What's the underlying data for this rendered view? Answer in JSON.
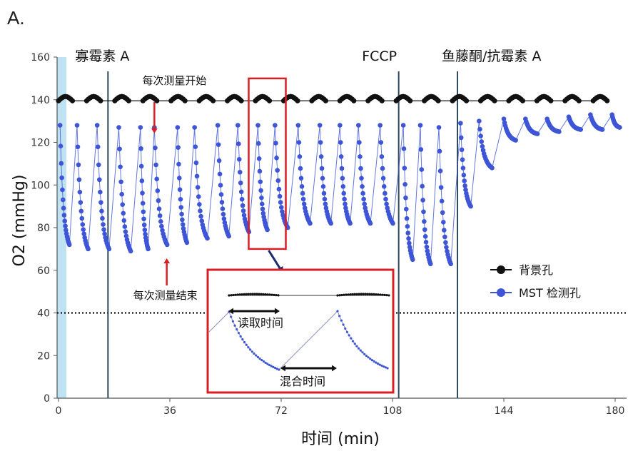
{
  "panel_label": "A.",
  "chart_data": {
    "type": "scatter",
    "xlabel": "时间 (min)",
    "ylabel": "O2 (mmHg)",
    "xlim": [
      0,
      180
    ],
    "ylim": [
      0,
      160
    ],
    "xticks": [
      0,
      36,
      72,
      108,
      144,
      180
    ],
    "yticks": [
      0,
      20,
      40,
      60,
      80,
      100,
      120,
      140,
      160
    ],
    "reference_line_y": 40,
    "colors": {
      "background": "#111111",
      "mst": "#3d55d6",
      "callout": "#d81f26",
      "injection_line": "#2f4a5a",
      "shade": "#bfe2f2"
    },
    "injections": [
      {
        "time": 16,
        "label": "寡霉素 A"
      },
      {
        "time": 110,
        "label": "FCCP"
      },
      {
        "time": 129,
        "label": "鱼藤酮/抗霉素 A"
      }
    ],
    "legend": [
      {
        "name": "背景孔",
        "color": "#111111"
      },
      {
        "name": "MST 检测孔",
        "color": "#3d55d6"
      }
    ],
    "annotations": {
      "start": "每次测量开始",
      "end": "每次测量结束",
      "read_time": "读取时间",
      "mix_time": "混合时间"
    },
    "series": [
      {
        "name": "背景孔",
        "cycle_starts": [
          0,
          9.1,
          18.2,
          27.3,
          36.4,
          45.5,
          54.6,
          63.7,
          72.8,
          81.9,
          91,
          100.1,
          109.2,
          118.3,
          127.4,
          136.5,
          145.6,
          154.7,
          163.8,
          172.9
        ],
        "read_duration": 4.5,
        "y_range": [
          139.5,
          141.5
        ]
      },
      {
        "name": "MST 检测孔",
        "peaks": [
          {
            "t": 0.5,
            "top": 128,
            "bottom": 72
          },
          {
            "t": 6,
            "top": 128,
            "bottom": 70
          },
          {
            "t": 12.5,
            "top": 128,
            "bottom": 70
          },
          {
            "t": 19.5,
            "top": 127,
            "bottom": 69
          },
          {
            "t": 26.5,
            "top": 127,
            "bottom": 70
          },
          {
            "t": 31,
            "top": 127,
            "bottom": 72
          },
          {
            "t": 38.5,
            "top": 127,
            "bottom": 73
          },
          {
            "t": 44,
            "top": 127,
            "bottom": 75
          },
          {
            "t": 51.5,
            "top": 128,
            "bottom": 76
          },
          {
            "t": 58,
            "top": 128,
            "bottom": 78
          },
          {
            "t": 64.5,
            "top": 128,
            "bottom": 79
          },
          {
            "t": 70,
            "top": 128,
            "bottom": 80
          },
          {
            "t": 77.5,
            "top": 128,
            "bottom": 82
          },
          {
            "t": 84.5,
            "top": 128,
            "bottom": 82
          },
          {
            "t": 91,
            "top": 128,
            "bottom": 82
          },
          {
            "t": 97,
            "top": 128,
            "bottom": 82
          },
          {
            "t": 104,
            "top": 128,
            "bottom": 82
          },
          {
            "t": 111.5,
            "top": 128,
            "bottom": 65
          },
          {
            "t": 117,
            "top": 128,
            "bottom": 63
          },
          {
            "t": 123,
            "top": 127,
            "bottom": 63
          },
          {
            "t": 130,
            "top": 129,
            "bottom": 90
          },
          {
            "t": 136,
            "top": 130,
            "bottom": 108
          },
          {
            "t": 144,
            "top": 131,
            "bottom": 121
          },
          {
            "t": 151,
            "top": 131,
            "bottom": 124
          },
          {
            "t": 158,
            "top": 131,
            "bottom": 125
          },
          {
            "t": 165,
            "top": 132,
            "bottom": 126
          },
          {
            "t": 172,
            "top": 133,
            "bottom": 126
          },
          {
            "t": 179,
            "top": 133,
            "bottom": 127
          }
        ]
      }
    ]
  }
}
